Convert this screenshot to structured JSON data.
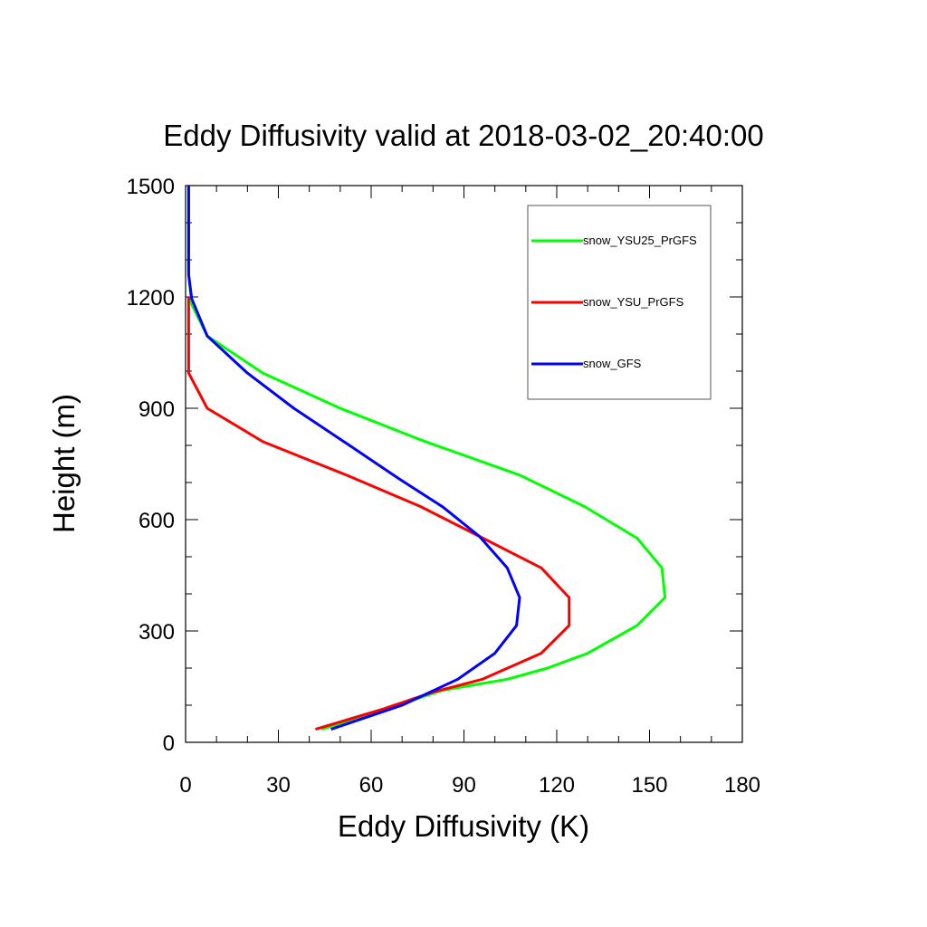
{
  "chart_data": {
    "type": "line",
    "title": "Eddy Diffusivity valid at 2018-03-02_20:40:00",
    "xlabel": "Eddy Diffusivity (K)",
    "ylabel": "Height (m)",
    "xlim": [
      0,
      180
    ],
    "ylim": [
      0,
      1500
    ],
    "xticks": [
      "0",
      "30",
      "60",
      "90",
      "120",
      "150",
      "180"
    ],
    "yticks": [
      "0",
      "300",
      "600",
      "900",
      "1200",
      "1500"
    ],
    "grid": false,
    "legend_position": "top-right",
    "series": [
      {
        "name": "snow_YSU25_PrGFS",
        "color": "#00ff00",
        "x": [
          44,
          63,
          83,
          104,
          117,
          130,
          146,
          155,
          154,
          146,
          129,
          108,
          76,
          50,
          25,
          7,
          2,
          1,
          1,
          1
        ],
        "y": [
          35,
          85,
          140,
          170,
          200,
          240,
          315,
          390,
          470,
          550,
          635,
          720,
          815,
          900,
          995,
          1095,
          1180,
          1260,
          1340,
          1500
        ]
      },
      {
        "name": "snow_YSU_PrGFS",
        "color": "#ff0000",
        "x": [
          42,
          64,
          80,
          96,
          115,
          124,
          124,
          115,
          95,
          76,
          52,
          25,
          7,
          1,
          1,
          1
        ],
        "y": [
          35,
          90,
          135,
          170,
          240,
          315,
          390,
          470,
          555,
          635,
          720,
          810,
          900,
          995,
          1080,
          1200
        ]
      },
      {
        "name": "snow_GFS",
        "color": "#0000ff",
        "x": [
          47,
          70,
          88,
          100,
          107,
          108,
          104,
          95,
          83,
          69,
          53,
          35,
          20,
          7,
          2,
          1,
          1,
          1
        ],
        "y": [
          35,
          100,
          170,
          240,
          315,
          390,
          470,
          555,
          635,
          710,
          800,
          900,
          995,
          1095,
          1195,
          1260,
          1340,
          1500
        ]
      }
    ]
  }
}
